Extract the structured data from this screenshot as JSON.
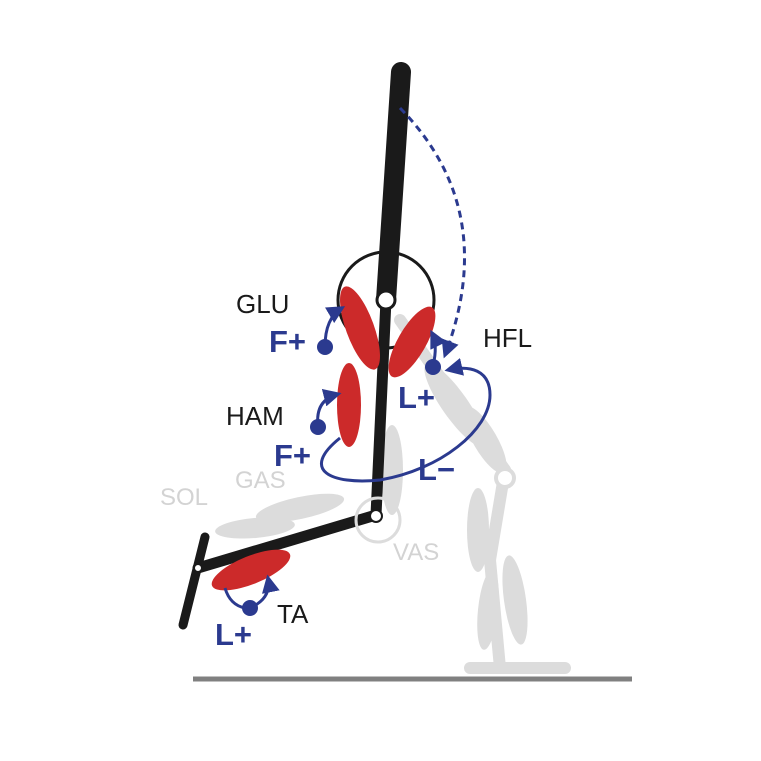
{
  "colors": {
    "background": "#ffffff",
    "skeleton": "#1a1a1a",
    "ghost": "#dcdcdc",
    "muscle": "#cc2a2a",
    "feedback": "#2b3a8f",
    "ground": "#808080"
  },
  "muscles": {
    "glu": "GLU",
    "hfl": "HFL",
    "ham": "HAM",
    "gas": "GAS",
    "sol": "SOL",
    "vas": "VAS",
    "ta": "TA"
  },
  "feedback": {
    "glu": "F+",
    "ham": "F+",
    "hfl": "L+",
    "hfl_neg": "L−",
    "ta": "L+"
  }
}
